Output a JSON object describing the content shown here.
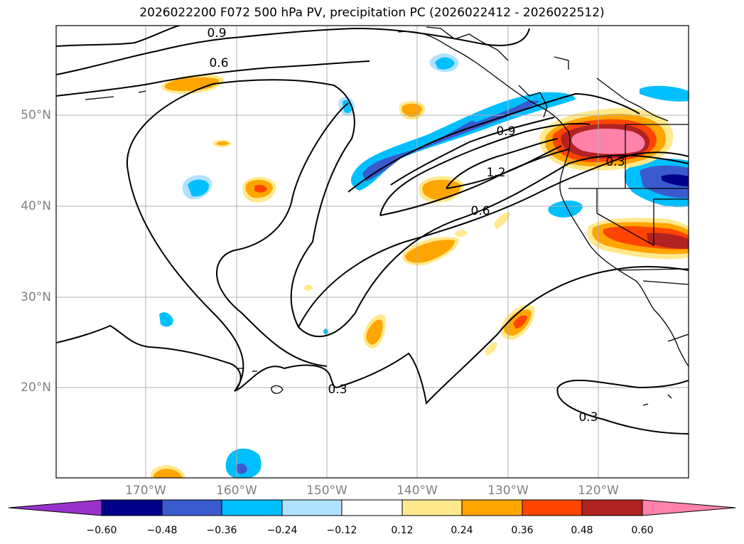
{
  "title": "2026022200 F072 500 hPa PV, precipitation PC (2026022412 - 2026022512)",
  "latitude_labels": [
    "50°N",
    "40°N",
    "30°N",
    "20°N"
  ],
  "longitude_labels": [
    "170°W",
    "160°W",
    "150°W",
    "140°W",
    "130°W",
    "120°W"
  ],
  "colorbar": {
    "ticks": [
      "−0.60",
      "−0.48",
      "−0.36",
      "−0.24",
      "−0.12",
      "0.12",
      "0.24",
      "0.36",
      "0.48",
      "0.60"
    ],
    "colors": [
      "#9932cc",
      "#00008b",
      "#3a5bcd",
      "#00bfff",
      "#b0e2ff",
      "#ffffff",
      "#ffe98c",
      "#ffa500",
      "#ff4500",
      "#b22222",
      "#ff82ab"
    ],
    "extend": "both"
  },
  "contour_labels": [
    "0.9",
    "0.6",
    "0.9",
    "1.2",
    "0.6",
    "0.3",
    "0.3",
    "0.3"
  ],
  "colors": {
    "land_outline": "#000000",
    "grid": "#b0b0b0"
  }
}
